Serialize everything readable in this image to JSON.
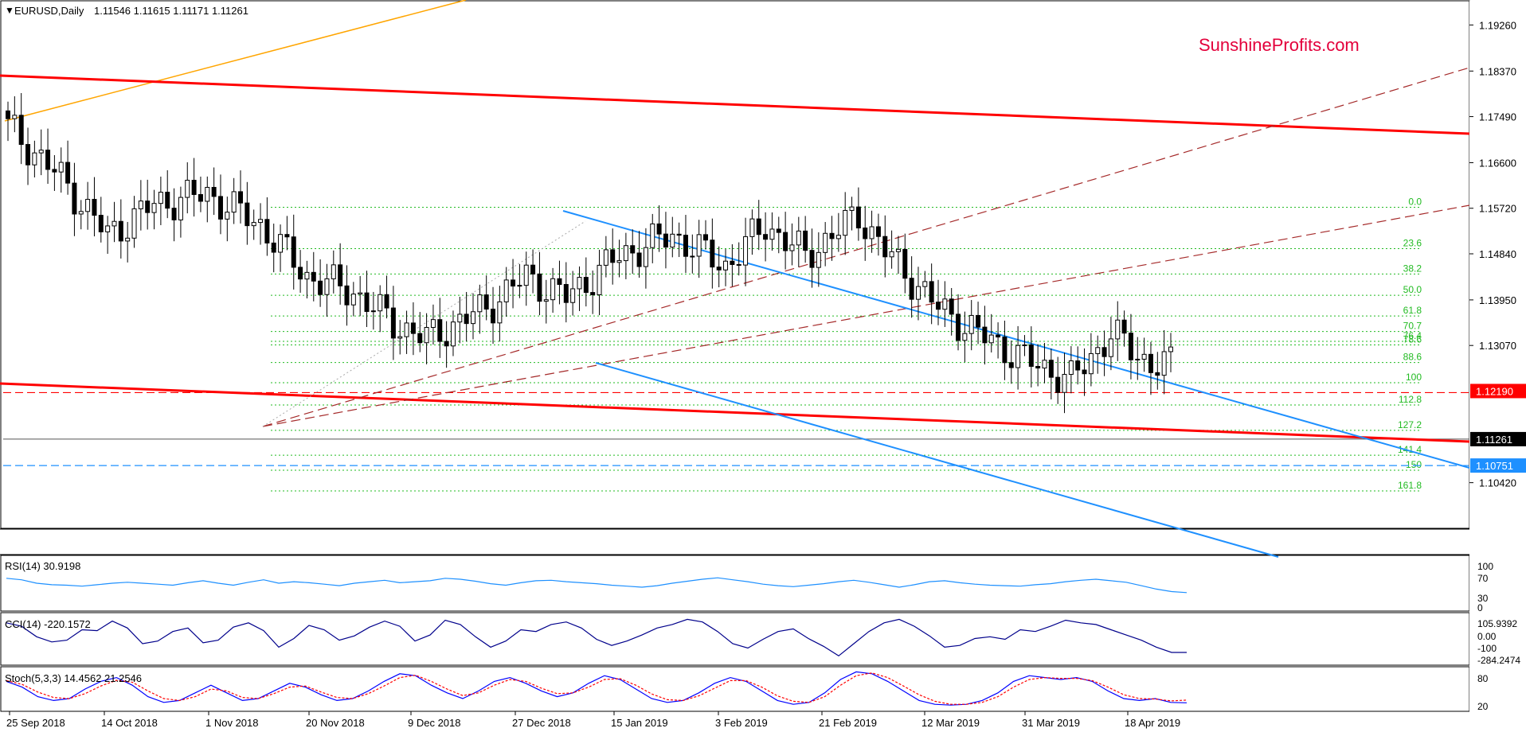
{
  "header": {
    "symbol": "EURUSD,Daily",
    "ohlc": "1.11546 1.11615 1.11171 1.11261"
  },
  "watermark": "SunshineProfits.com",
  "colors": {
    "watermark": "#e3003b",
    "red_line": "#ff0000",
    "blue_channel": "#1e90ff",
    "fib_green": "#22bb22",
    "brown_dash": "#a52a2a",
    "orange_line": "#ffa500",
    "rsi_line": "#1e90ff",
    "cci_line": "#00008b",
    "stoch_main": "#0000ff",
    "stoch_signal": "#ff0000"
  },
  "chart_data": [
    {
      "type": "candlestick",
      "title": "EURUSD,Daily",
      "ylim": [
        1.096,
        1.1965
      ],
      "y_ticks": [
        "1.19260",
        "1.18370",
        "1.17490",
        "1.16600",
        "1.15720",
        "1.14840",
        "1.13950",
        "1.13070",
        "1.10420"
      ],
      "x_labels": [
        "25 Sep 2018",
        "14 Oct 2018",
        "1 Nov 2018",
        "20 Nov 2018",
        "9 Dec 2018",
        "27 Dec 2018",
        "15 Jan 2019",
        "3 Feb 2019",
        "21 Feb 2019",
        "12 Mar 2019",
        "31 Mar 2019",
        "18 Apr 2019"
      ],
      "price_labels": [
        {
          "text": "1.12190",
          "value": 1.1219,
          "color": "#ff0000"
        },
        {
          "text": "1.11261",
          "value": 1.11261,
          "color": "#000000"
        },
        {
          "text": "1.10751",
          "value": 1.10751,
          "color": "#1e90ff"
        }
      ],
      "fib_levels": [
        {
          "label": "0.0",
          "value": 1.1574
        },
        {
          "label": "23.6",
          "value": 1.1494
        },
        {
          "label": "38.2",
          "value": 1.1445
        },
        {
          "label": "50.0",
          "value": 1.1404
        },
        {
          "label": "61.8",
          "value": 1.1364
        },
        {
          "label": "70.7",
          "value": 1.1334
        },
        {
          "label": "76.4",
          "value": 1.1315
        },
        {
          "label": "78.6",
          "value": 1.1308
        },
        {
          "label": "88.6",
          "value": 1.1274
        },
        {
          "label": "100",
          "value": 1.1235
        },
        {
          "label": "112.8",
          "value": 1.1192
        },
        {
          "label": "127.2",
          "value": 1.1143
        },
        {
          "label": "141.4",
          "value": 1.1095
        },
        {
          "label": "150",
          "value": 1.1066
        },
        {
          "label": "161.8",
          "value": 1.1026
        }
      ]
    },
    {
      "type": "line",
      "title": "RSI(14) 30.9198",
      "ylim": [
        0,
        100
      ],
      "y_ticks": [
        "100",
        "70",
        "30",
        "0"
      ],
      "series": [
        {
          "values": [
            60,
            57,
            50,
            47,
            46,
            44,
            47,
            50,
            52,
            50,
            48,
            46,
            51,
            55,
            50,
            46,
            52,
            57,
            50,
            53,
            51,
            48,
            45,
            50,
            53,
            56,
            51,
            53,
            55,
            60,
            58,
            54,
            49,
            46,
            51,
            55,
            56,
            53,
            51,
            49,
            46,
            44,
            42,
            45,
            50,
            54,
            58,
            61,
            57,
            53,
            48,
            45,
            43,
            46,
            49,
            53,
            56,
            52,
            47,
            42,
            47,
            53,
            55,
            51,
            48,
            46,
            45,
            44,
            47,
            49,
            53,
            56,
            58,
            55,
            52,
            45,
            38,
            33,
            31
          ]
        }
      ]
    },
    {
      "type": "line",
      "title": "CCI(14) -220.1572",
      "ylim": [
        -330,
        200
      ],
      "y_ticks": [
        "105.9392",
        "0.00",
        "-100",
        "-284.2474"
      ],
      "series": [
        {
          "values": [
            120,
            80,
            -40,
            -100,
            -80,
            40,
            30,
            140,
            60,
            -120,
            -90,
            20,
            60,
            -110,
            -80,
            70,
            120,
            30,
            -160,
            -60,
            90,
            40,
            -80,
            -30,
            70,
            140,
            80,
            -90,
            -20,
            150,
            100,
            -40,
            -160,
            -90,
            40,
            20,
            100,
            130,
            60,
            -70,
            -140,
            -90,
            -20,
            60,
            100,
            160,
            130,
            20,
            -120,
            -170,
            -70,
            20,
            50,
            -60,
            -150,
            -260,
            -120,
            20,
            120,
            160,
            80,
            -30,
            -160,
            -140,
            -60,
            -40,
            -70,
            40,
            20,
            80,
            150,
            120,
            100,
            40,
            -20,
            -80,
            -160,
            -220,
            -220
          ]
        }
      ]
    },
    {
      "type": "line",
      "title": "Stoch(5,3,3) 14.4562 21.2546",
      "ylim": [
        0,
        100
      ],
      "y_ticks": [
        "80",
        "20"
      ],
      "series": [
        {
          "values": [
            70,
            55,
            30,
            20,
            25,
            50,
            70,
            80,
            60,
            30,
            15,
            20,
            40,
            60,
            40,
            20,
            25,
            45,
            65,
            55,
            35,
            20,
            25,
            45,
            70,
            90,
            85,
            60,
            40,
            25,
            45,
            70,
            80,
            65,
            45,
            30,
            40,
            65,
            85,
            75,
            50,
            25,
            15,
            20,
            40,
            65,
            80,
            70,
            45,
            20,
            10,
            15,
            40,
            75,
            95,
            90,
            70,
            45,
            20,
            10,
            8,
            10,
            20,
            40,
            70,
            85,
            80,
            75,
            80,
            70,
            45,
            25,
            20,
            25,
            15,
            14
          ]
        },
        {
          "values": [
            72,
            62,
            42,
            28,
            25,
            38,
            58,
            73,
            68,
            45,
            25,
            20,
            30,
            50,
            45,
            28,
            25,
            38,
            55,
            58,
            42,
            28,
            25,
            38,
            58,
            80,
            86,
            70,
            50,
            33,
            40,
            60,
            75,
            70,
            52,
            38,
            40,
            55,
            75,
            77,
            60,
            37,
            22,
            20,
            32,
            52,
            72,
            72,
            55,
            32,
            18,
            15,
            30,
            60,
            85,
            92,
            80,
            58,
            35,
            18,
            10,
            10,
            15,
            30,
            55,
            75,
            80,
            78,
            78,
            72,
            55,
            35,
            25,
            24,
            19,
            21
          ]
        }
      ]
    }
  ]
}
